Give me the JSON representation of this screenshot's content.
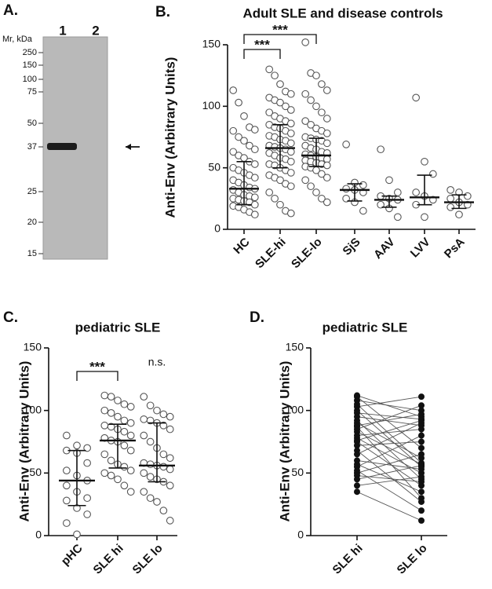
{
  "chart_data": [
    {
      "type": "gel",
      "panel_label": "A.",
      "axis_label": "Mr, kDa",
      "lanes": [
        "1",
        "2"
      ],
      "markers": [
        250,
        150,
        100,
        75,
        50,
        37,
        25,
        20,
        15
      ]
    },
    {
      "type": "dot_plot",
      "panel_label": "B.",
      "title": "Adult SLE and disease controls",
      "ylabel": "Anti-Env (Arbitrary Units)",
      "categories": [
        "HC",
        "SLE-hi",
        "SLE-lo",
        "SjS",
        "AAV",
        "LVV",
        "PsA"
      ],
      "values": [
        [
          113,
          103,
          92,
          83,
          81,
          80,
          75,
          72,
          68,
          65,
          63,
          60,
          58,
          55,
          53,
          50,
          48,
          46,
          44,
          42,
          40,
          38,
          36,
          34,
          33,
          32,
          30,
          28,
          27,
          26,
          25,
          24,
          23,
          22,
          20,
          19,
          18,
          16,
          14,
          12
        ],
        [
          130,
          125,
          118,
          112,
          110,
          107,
          105,
          103,
          100,
          97,
          95,
          92,
          90,
          88,
          86,
          85,
          83,
          82,
          80,
          78,
          76,
          75,
          73,
          72,
          70,
          68,
          67,
          66,
          65,
          63,
          62,
          60,
          58,
          57,
          55,
          53,
          52,
          50,
          48,
          46,
          44,
          42,
          40,
          37,
          35,
          30,
          25,
          20,
          15,
          13
        ],
        [
          152,
          127,
          125,
          118,
          113,
          110,
          105,
          100,
          95,
          90,
          88,
          85,
          82,
          80,
          78,
          75,
          74,
          73,
          72,
          70,
          68,
          66,
          65,
          63,
          62,
          61,
          60,
          59,
          58,
          57,
          56,
          55,
          54,
          53,
          52,
          51,
          50,
          48,
          45,
          42,
          40,
          35,
          30,
          25,
          22
        ],
        [
          69,
          38,
          36,
          33,
          32,
          30,
          25,
          22,
          15
        ],
        [
          65,
          40,
          30,
          27,
          25,
          24,
          20,
          17,
          10
        ],
        [
          107,
          55,
          45,
          30,
          27,
          24,
          20,
          10
        ],
        [
          32,
          30,
          27,
          25,
          22,
          20,
          18,
          12
        ]
      ],
      "medians": [
        33,
        66,
        60,
        32,
        24,
        26,
        22
      ],
      "q1": [
        20,
        50,
        51,
        23,
        18,
        20,
        17
      ],
      "q3": [
        55,
        85,
        74,
        37,
        27,
        44,
        28
      ],
      "ylim": [
        0,
        150
      ],
      "yticks": [
        0,
        50,
        100,
        150
      ],
      "comparisons": [
        {
          "label": "***",
          "groups": [
            "HC",
            "SLE-hi"
          ]
        },
        {
          "label": "***",
          "groups": [
            "HC",
            "SLE-lo"
          ]
        }
      ]
    },
    {
      "type": "dot_plot",
      "panel_label": "C.",
      "title": "pediatric SLE",
      "ylabel": "Anti-Env (Arbitrary Units)",
      "categories": [
        "pHC",
        "SLE hi",
        "SLE lo"
      ],
      "values": [
        [
          80,
          72,
          70,
          68,
          66,
          58,
          52,
          48,
          44,
          40,
          35,
          30,
          28,
          22,
          17,
          10,
          1
        ],
        [
          112,
          111,
          108,
          105,
          103,
          100,
          98,
          95,
          92,
          90,
          88,
          87,
          85,
          83,
          80,
          78,
          76,
          75,
          72,
          68,
          65,
          60,
          57,
          55,
          52,
          50,
          48,
          45,
          40,
          35
        ],
        [
          111,
          104,
          100,
          97,
          95,
          93,
          92,
          90,
          88,
          85,
          80,
          75,
          70,
          65,
          62,
          58,
          57,
          56,
          55,
          53,
          50,
          47,
          45,
          43,
          40,
          35,
          30,
          27,
          20,
          12
        ]
      ],
      "medians": [
        44,
        76,
        56
      ],
      "q1": [
        24,
        54,
        43
      ],
      "q3": [
        68,
        89,
        90
      ],
      "ylim": [
        0,
        150
      ],
      "yticks": [
        0,
        50,
        100,
        150
      ],
      "comparisons": [
        {
          "label": "***",
          "groups": [
            "pHC",
            "SLE hi"
          ]
        },
        {
          "label": "n.s.",
          "groups": [
            "SLE lo"
          ]
        }
      ]
    },
    {
      "type": "paired",
      "panel_label": "D.",
      "title": "pediatric SLE",
      "ylabel": "Anti-Env (Arbitrary Units)",
      "categories": [
        "SLE hi",
        "SLE lo"
      ],
      "values": [
        [
          112,
          111,
          108,
          105,
          103,
          100,
          98,
          95,
          92,
          90,
          88,
          87,
          85,
          83,
          80,
          78,
          76,
          75,
          72,
          68,
          65,
          60,
          57,
          55,
          52,
          50,
          48,
          45,
          40,
          35
        ],
        [
          95,
          70,
          100,
          58,
          111,
          55,
          93,
          88,
          45,
          62,
          97,
          30,
          104,
          57,
          85,
          50,
          92,
          40,
          75,
          27,
          90,
          53,
          35,
          80,
          20,
          65,
          43,
          56,
          47,
          12
        ]
      ],
      "ylim": [
        0,
        150
      ],
      "yticks": [
        0,
        50,
        100,
        150
      ]
    }
  ]
}
